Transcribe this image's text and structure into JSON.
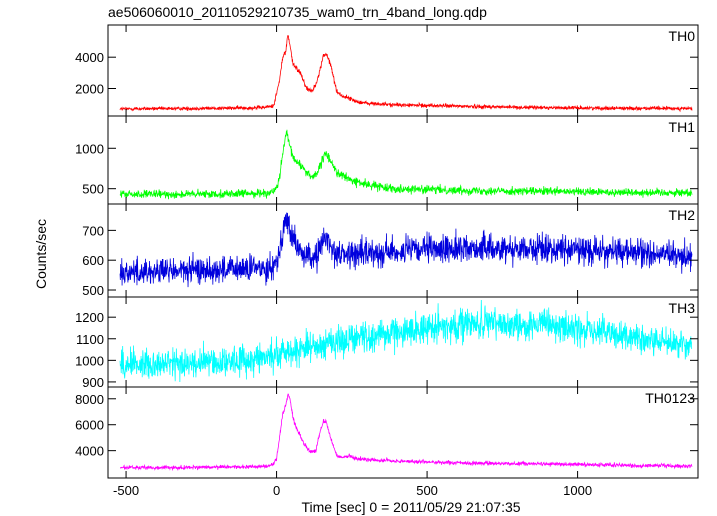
{
  "chart_data": {
    "type": "line",
    "title": "ae506060010_20110529210735_wam0_trn_4band_long.qdp",
    "xlabel": "Time [sec] 0 = 2011/05/29 21:07:35",
    "ylabel": "Counts/sec",
    "xlim": [
      -560,
      1400
    ],
    "x_ticks": [
      -500,
      0,
      500,
      1000
    ],
    "grid": false,
    "panels": [
      {
        "name": "TH0",
        "color": "#ff0000",
        "ylim": [
          500,
          5800
        ],
        "y_ticks": [
          2000,
          4000
        ],
        "x": [
          -520,
          -300,
          -100,
          -40,
          -10,
          10,
          20,
          30,
          38,
          45,
          55,
          80,
          100,
          120,
          140,
          155,
          165,
          180,
          200,
          220,
          240,
          260,
          300,
          400,
          600,
          800,
          1000,
          1200,
          1380
        ],
        "y": [
          700,
          720,
          760,
          790,
          900,
          2500,
          4000,
          4300,
          5500,
          4700,
          3500,
          3000,
          2000,
          1850,
          2800,
          4100,
          4200,
          3500,
          1800,
          1500,
          1400,
          1200,
          1050,
          950,
          880,
          800,
          760,
          740,
          720
        ],
        "noise": 80
      },
      {
        "name": "TH1",
        "color": "#00ff00",
        "ylim": [
          360,
          1350
        ],
        "y_ticks": [
          500,
          1000
        ],
        "x": [
          -520,
          -300,
          -100,
          -20,
          0,
          10,
          20,
          30,
          35,
          40,
          60,
          80,
          100,
          120,
          140,
          155,
          165,
          180,
          200,
          250,
          300,
          400,
          600,
          800,
          1000,
          1200,
          1380
        ],
        "y": [
          430,
          430,
          440,
          450,
          500,
          650,
          900,
          1150,
          1200,
          1050,
          850,
          800,
          700,
          650,
          720,
          880,
          930,
          850,
          700,
          600,
          550,
          500,
          480,
          470,
          460,
          455,
          450
        ],
        "noise": 35
      },
      {
        "name": "TH2",
        "color": "#0000dd",
        "ylim": [
          490,
          775
        ],
        "y_ticks": [
          500,
          600,
          700
        ],
        "x": [
          -520,
          -300,
          -100,
          -30,
          0,
          10,
          20,
          30,
          40,
          50,
          70,
          100,
          130,
          150,
          165,
          180,
          200,
          250,
          300,
          400,
          600,
          800,
          1000,
          1200,
          1380
        ],
        "y": [
          560,
          565,
          570,
          575,
          590,
          640,
          700,
          730,
          720,
          680,
          640,
          610,
          610,
          650,
          680,
          650,
          620,
          620,
          625,
          630,
          640,
          640,
          635,
          625,
          610
        ],
        "noise": 32
      },
      {
        "name": "TH3",
        "color": "#00ffff",
        "ylim": [
          895,
          1275
        ],
        "y_ticks": [
          900,
          1000,
          1100,
          1200
        ],
        "x": [
          -520,
          -300,
          -100,
          0,
          100,
          200,
          300,
          400,
          500,
          600,
          700,
          800,
          900,
          1000,
          1100,
          1200,
          1300,
          1380
        ],
        "y": [
          985,
          985,
          1000,
          1030,
          1060,
          1090,
          1110,
          1130,
          1150,
          1165,
          1170,
          1168,
          1160,
          1145,
          1125,
          1100,
          1080,
          1065
        ],
        "noise": 50
      },
      {
        "name": "TH0123",
        "color": "#ff00ff",
        "ylim": [
          2200,
          8600
        ],
        "y_ticks": [
          4000,
          6000,
          8000
        ],
        "x": [
          -520,
          -300,
          -100,
          -30,
          -10,
          0,
          10,
          20,
          30,
          38,
          45,
          55,
          70,
          90,
          110,
          130,
          145,
          155,
          165,
          180,
          200,
          220,
          240,
          260,
          300,
          400,
          600,
          800,
          1000,
          1200,
          1380
        ],
        "y": [
          2700,
          2700,
          2750,
          2800,
          3000,
          3400,
          5000,
          6800,
          7500,
          8400,
          8000,
          6500,
          5500,
          4600,
          3900,
          4000,
          5500,
          6300,
          6200,
          5000,
          3600,
          3500,
          3600,
          3400,
          3300,
          3200,
          3050,
          3000,
          2950,
          2850,
          2800
        ],
        "noise": 100
      }
    ]
  }
}
